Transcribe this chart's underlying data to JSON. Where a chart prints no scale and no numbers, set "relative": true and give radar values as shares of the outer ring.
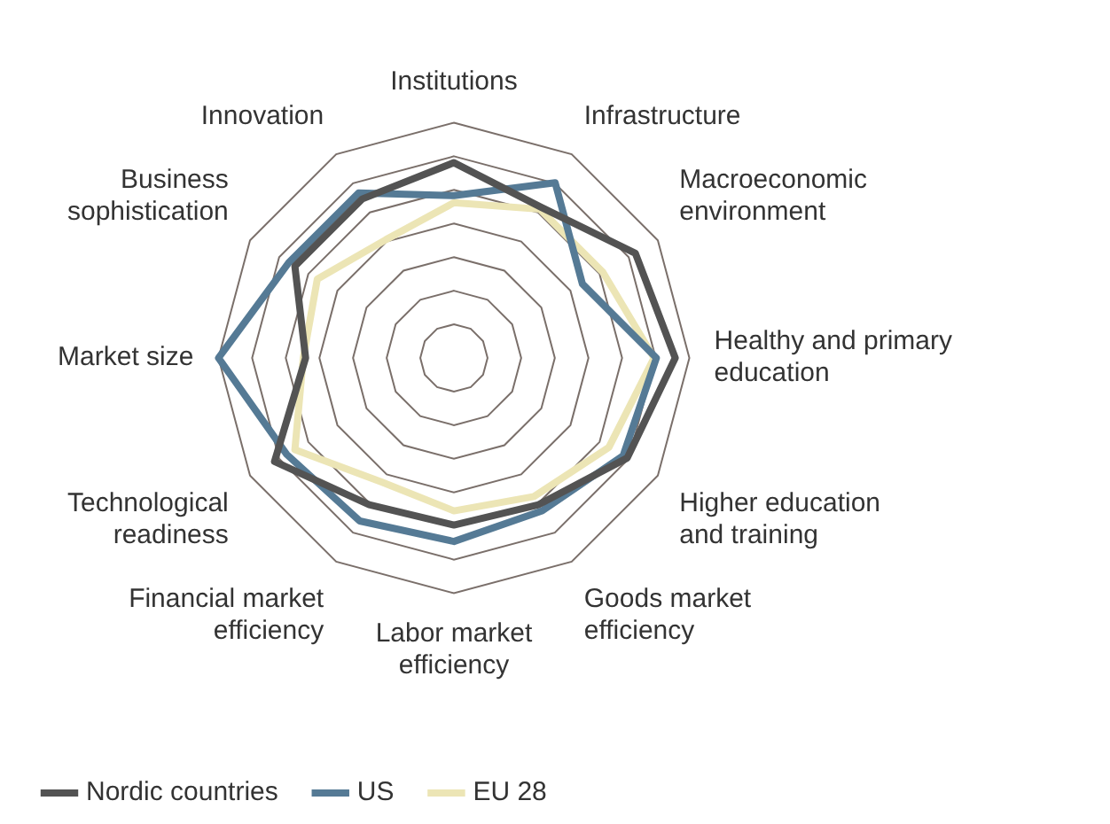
{
  "chart_data": {
    "type": "radar",
    "relative": true,
    "categories": [
      "Institutions",
      "Infrastructure",
      "Macroeconomic environment",
      "Healthy and primary education",
      "Higher education and training",
      "Goods market efficiency",
      "Labor market efficiency",
      "Financial market efficiency",
      "Technological readiness",
      "Market size",
      "Business sophistication",
      "Innovation"
    ],
    "series": [
      {
        "name": "Nordic countries",
        "color": "#535353",
        "values": [
          0.83,
          0.74,
          0.89,
          0.94,
          0.85,
          0.72,
          0.71,
          0.72,
          0.88,
          0.63,
          0.78,
          0.78
        ]
      },
      {
        "name": "US",
        "color": "#557a95",
        "values": [
          0.69,
          0.86,
          0.63,
          0.86,
          0.83,
          0.75,
          0.78,
          0.8,
          0.82,
          1,
          0.81,
          0.81
        ]
      },
      {
        "name": "EU 28",
        "color": "#ece5b5",
        "values": [
          0.66,
          0.73,
          0.73,
          0.85,
          0.76,
          0.68,
          0.65,
          0.61,
          0.78,
          0.64,
          0.67,
          0.58
        ]
      }
    ],
    "legend": "bottom left",
    "grid": true,
    "marker": "none"
  }
}
